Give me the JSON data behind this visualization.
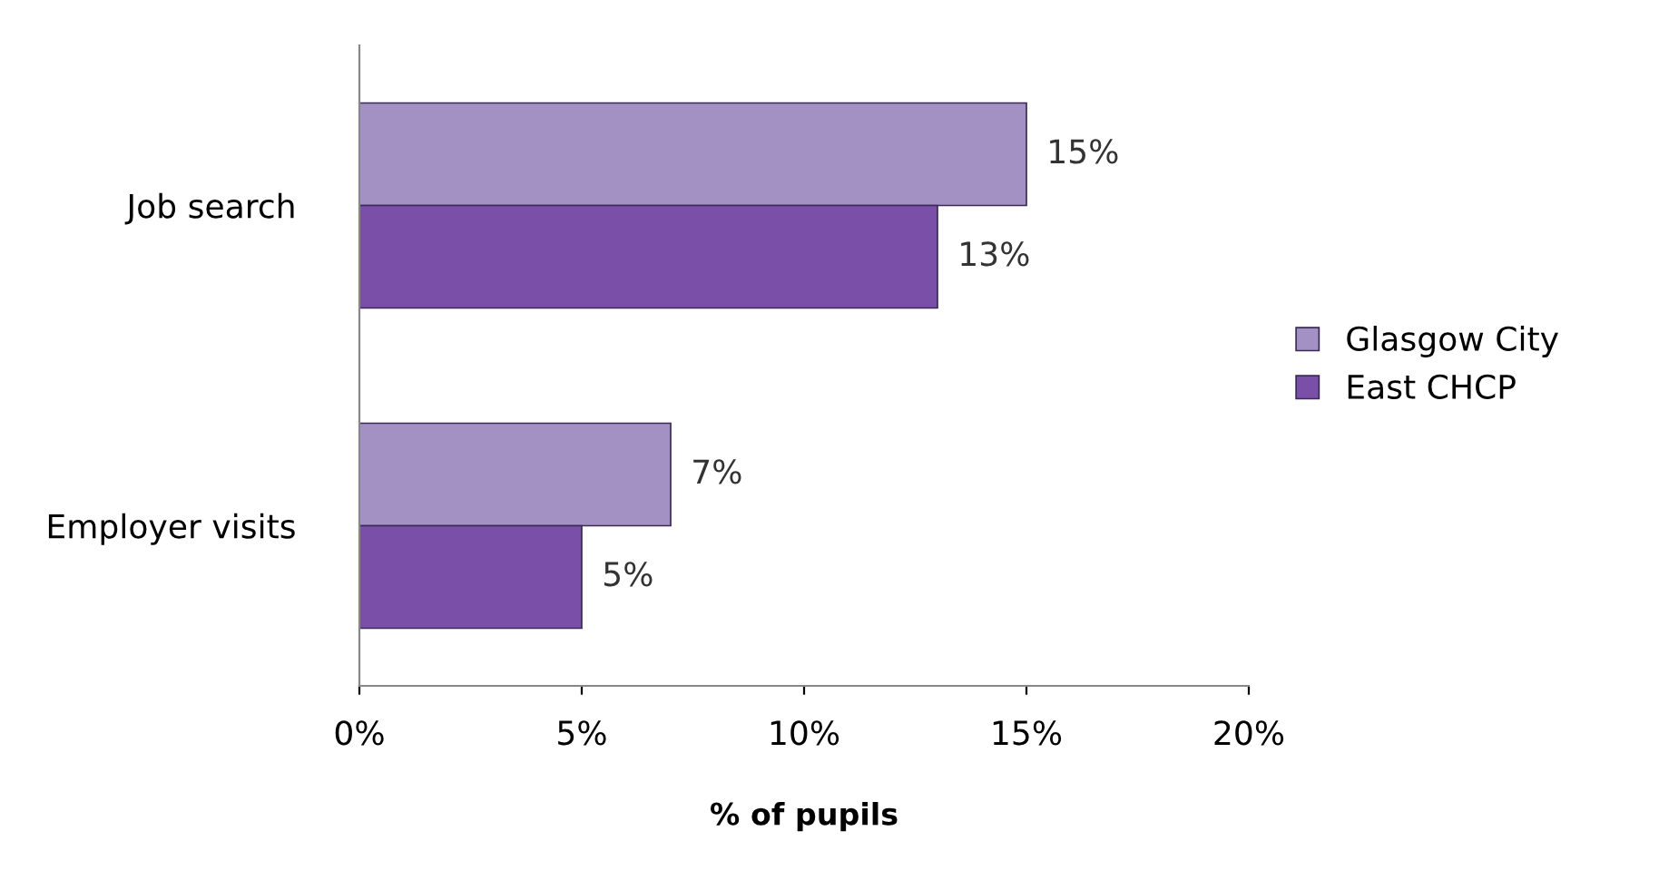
{
  "chart_data": {
    "type": "bar",
    "orientation": "horizontal",
    "xlabel": "% of pupils",
    "categories": [
      "Job search",
      "Employer visits"
    ],
    "series": [
      {
        "name": "Glasgow City",
        "color": "#a391c4",
        "values": [
          15,
          7
        ],
        "value_labels": [
          "15%",
          "7%"
        ]
      },
      {
        "name": "East CHCP",
        "color": "#7a4fa8",
        "values": [
          13,
          5
        ],
        "value_labels": [
          "13%",
          "5%"
        ]
      }
    ],
    "xlim": [
      0,
      20
    ],
    "xticks": [
      {
        "value": 0,
        "label": "0%"
      },
      {
        "value": 5,
        "label": "5%"
      },
      {
        "value": 10,
        "label": "10%"
      },
      {
        "value": 15,
        "label": "15%"
      },
      {
        "value": 20,
        "label": "20%"
      }
    ],
    "grid": false,
    "legend": "right"
  }
}
